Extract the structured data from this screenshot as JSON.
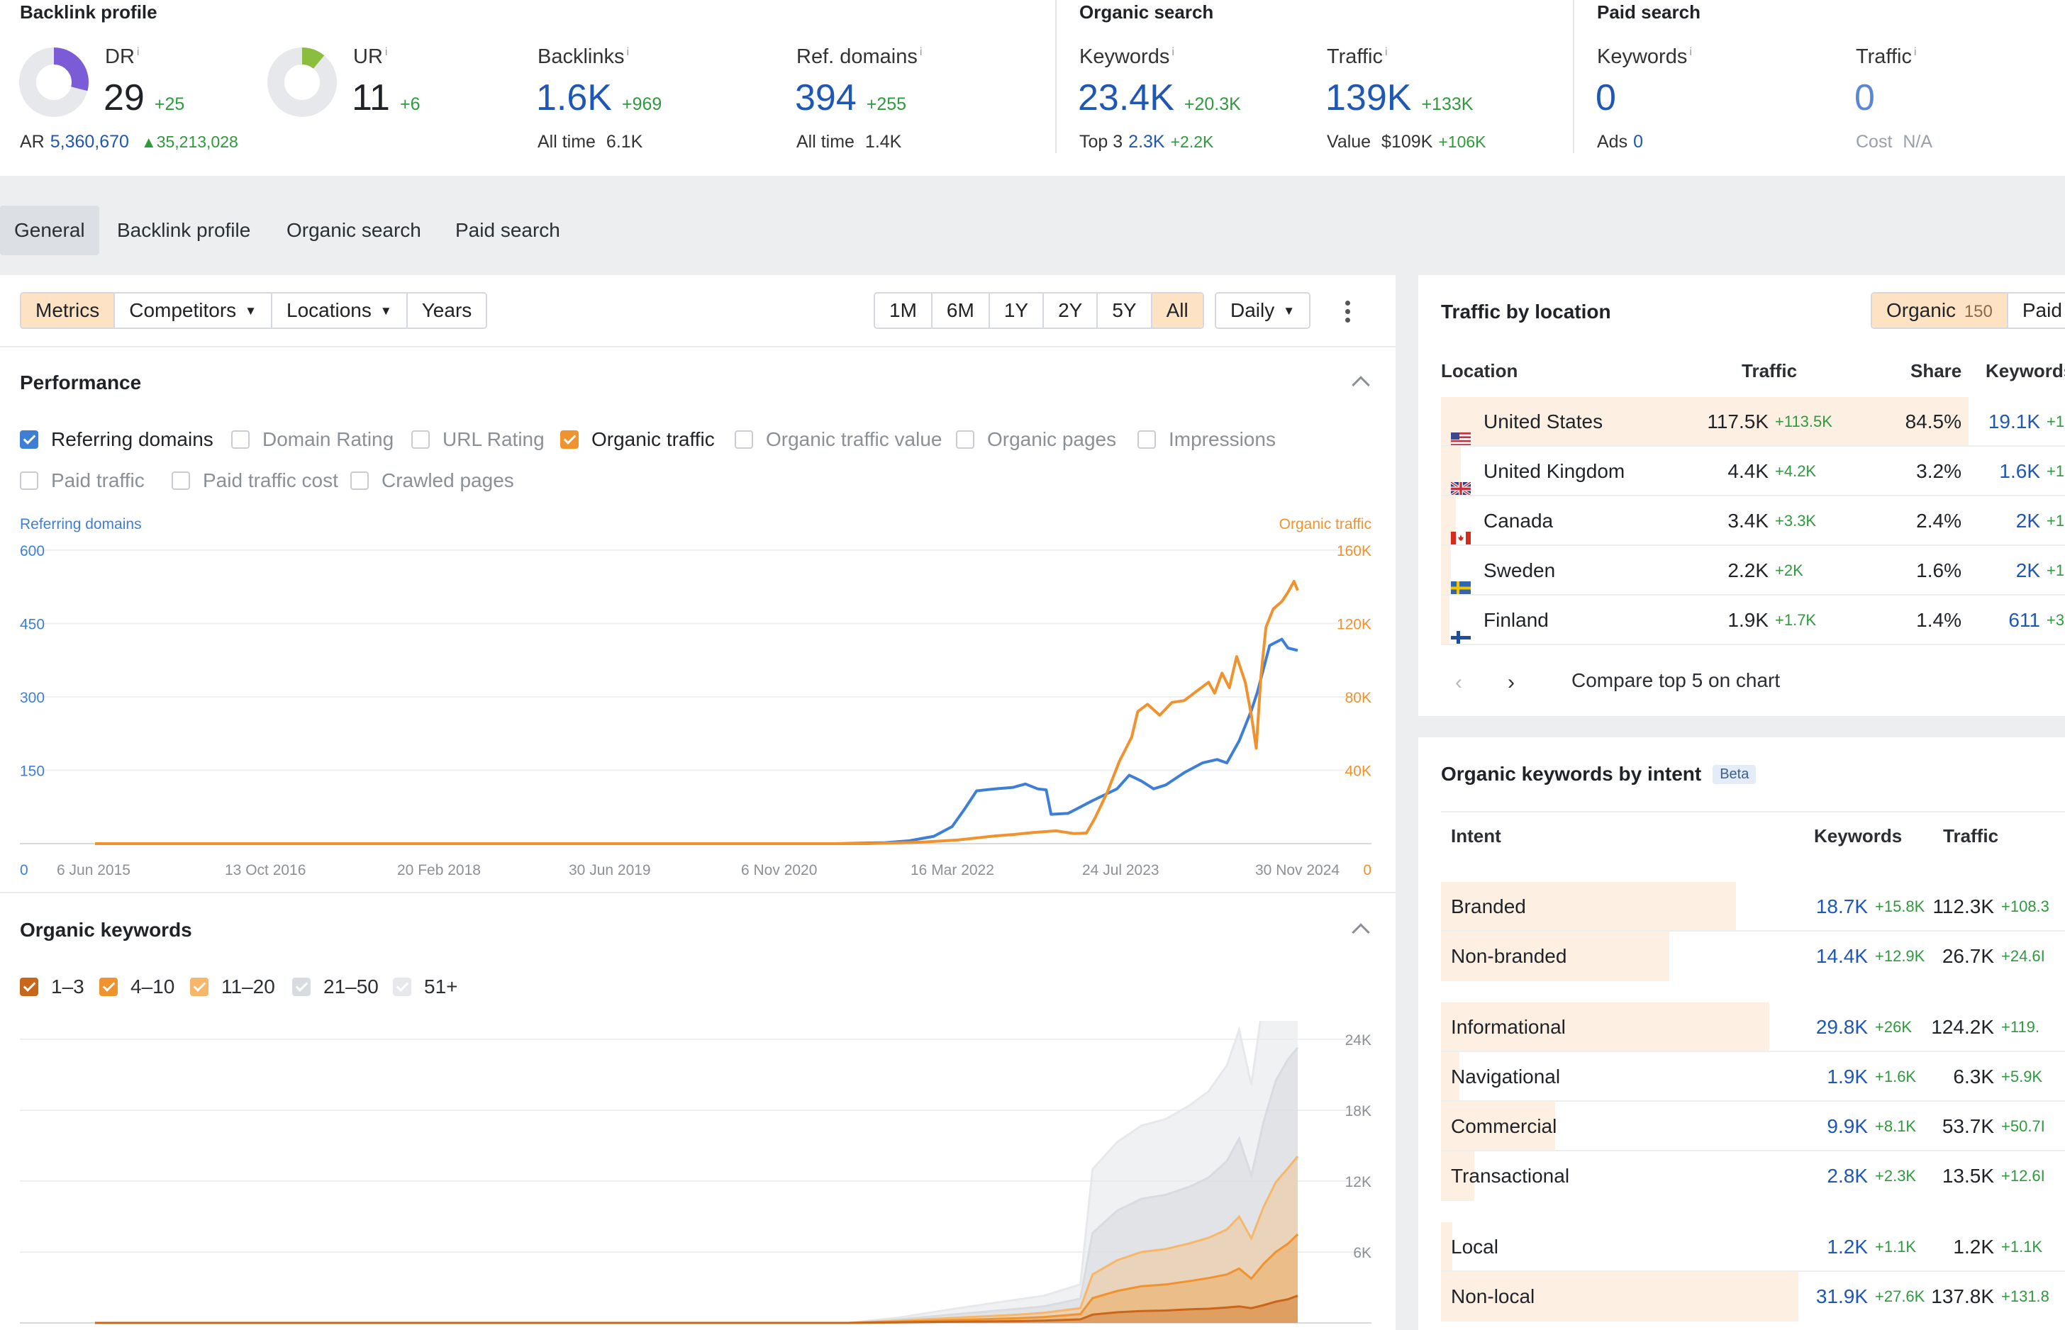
{
  "top": {
    "backlink_profile": {
      "title": "Backlink profile",
      "dr": {
        "label": "DR",
        "info": "i",
        "value": "29",
        "delta": "+25",
        "pct": 0.29,
        "color": "#7b5cd6"
      },
      "ur": {
        "label": "UR",
        "info": "i",
        "value": "11",
        "delta": "+6",
        "pct": 0.11,
        "color": "#8bbd3f"
      },
      "ar": {
        "label": "AR",
        "value": "5,360,670",
        "delta": "35,213,028"
      },
      "backlinks": {
        "label": "Backlinks",
        "info": "i",
        "value": "1.6K",
        "delta": "+969",
        "sub_label": "All time",
        "sub_value": "6.1K"
      },
      "ref_domains": {
        "label": "Ref. domains",
        "info": "i",
        "value": "394",
        "delta": "+255",
        "sub_label": "All time",
        "sub_value": "1.4K"
      }
    },
    "organic_search": {
      "title": "Organic search",
      "keywords": {
        "label": "Keywords",
        "info": "i",
        "value": "23.4K",
        "delta": "+20.3K",
        "sub_label": "Top 3",
        "sub_value": "2.3K",
        "sub_delta": "+2.2K"
      },
      "traffic": {
        "label": "Traffic",
        "info": "i",
        "value": "139K",
        "delta": "+133K",
        "sub_label": "Value",
        "sub_value": "$109K",
        "sub_delta": "+106K"
      }
    },
    "paid_search": {
      "title": "Paid search",
      "keywords": {
        "label": "Keywords",
        "info": "i",
        "value": "0",
        "sub_label": "Ads",
        "sub_value": "0"
      },
      "traffic": {
        "label": "Traffic",
        "info": "i",
        "value": "0",
        "sub_label": "Cost",
        "sub_value": "N/A"
      }
    }
  },
  "tabs": [
    "General",
    "Backlink profile",
    "Organic search",
    "Paid search"
  ],
  "toolbar": {
    "left": [
      "Metrics",
      "Competitors",
      "Locations",
      "Years"
    ],
    "ranges": [
      "1M",
      "6M",
      "1Y",
      "2Y",
      "5Y",
      "All"
    ],
    "interval": "Daily"
  },
  "performance": {
    "title": "Performance",
    "checkboxes": [
      {
        "label": "Referring domains",
        "checked": true,
        "color": "#3e7fd6"
      },
      {
        "label": "Domain Rating",
        "checked": false
      },
      {
        "label": "URL Rating",
        "checked": false
      },
      {
        "label": "Organic traffic",
        "checked": true,
        "color": "#f0922e"
      },
      {
        "label": "Organic traffic value",
        "checked": false
      },
      {
        "label": "Organic pages",
        "checked": false
      },
      {
        "label": "Impressions",
        "checked": false
      },
      {
        "label": "Paid traffic",
        "checked": false
      },
      {
        "label": "Paid traffic cost",
        "checked": false
      },
      {
        "label": "Crawled pages",
        "checked": false
      }
    ]
  },
  "organic_keywords": {
    "title": "Organic keywords",
    "legend": [
      {
        "label": "1–3",
        "color": "#c8661a"
      },
      {
        "label": "4–10",
        "color": "#f0922e"
      },
      {
        "label": "11–20",
        "color": "#f6b76a"
      },
      {
        "label": "21–50",
        "color": "#d8dbe0"
      },
      {
        "label": "51+",
        "color": "#e6e8eb"
      }
    ]
  },
  "chart_data": [
    {
      "type": "line",
      "left_axis_label": "Referring domains",
      "right_axis_label": "Organic traffic",
      "x_tick_labels": [
        "6 Jun 2015",
        "13 Oct 2016",
        "20 Feb 2018",
        "30 Jun 2019",
        "6 Nov 2020",
        "16 Mar 2022",
        "24 Jul 2023",
        "30 Nov 2024"
      ],
      "y_left_ticks": [
        "0",
        "150",
        "300",
        "450",
        "600"
      ],
      "y_right_ticks": [
        "0",
        "40K",
        "80K",
        "120K",
        "160K"
      ],
      "ylim_left": [
        0,
        600
      ],
      "ylim_right": [
        0,
        160000
      ],
      "grid": true,
      "series": [
        {
          "name": "Referring domains",
          "axis": "left",
          "color": "#3e7fd6",
          "points": [
            [
              2015.43,
              0
            ],
            [
              2021.5,
              0
            ],
            [
              2021.9,
              2
            ],
            [
              2022.1,
              6
            ],
            [
              2022.3,
              15
            ],
            [
              2022.45,
              35
            ],
            [
              2022.55,
              70
            ],
            [
              2022.65,
              108
            ],
            [
              2022.8,
              112
            ],
            [
              2022.95,
              115
            ],
            [
              2023.05,
              122
            ],
            [
              2023.15,
              112
            ],
            [
              2023.22,
              110
            ],
            [
              2023.26,
              60
            ],
            [
              2023.4,
              62
            ],
            [
              2023.5,
              75
            ],
            [
              2023.6,
              88
            ],
            [
              2023.7,
              100
            ],
            [
              2023.8,
              112
            ],
            [
              2023.9,
              140
            ],
            [
              2024.0,
              128
            ],
            [
              2024.1,
              112
            ],
            [
              2024.2,
              120
            ],
            [
              2024.35,
              145
            ],
            [
              2024.5,
              165
            ],
            [
              2024.62,
              172
            ],
            [
              2024.7,
              165
            ],
            [
              2024.8,
              210
            ],
            [
              2024.9,
              272
            ],
            [
              2024.95,
              310
            ],
            [
              2025.05,
              405
            ],
            [
              2025.15,
              418
            ],
            [
              2025.2,
              400
            ],
            [
              2025.28,
              395
            ]
          ]
        },
        {
          "name": "Organic traffic",
          "axis": "right",
          "color": "#f0922e",
          "points": [
            [
              2015.43,
              0
            ],
            [
              2021.75,
              0
            ],
            [
              2022.2,
              800
            ],
            [
              2022.5,
              2000
            ],
            [
              2022.8,
              4200
            ],
            [
              2022.95,
              5000
            ],
            [
              2023.1,
              6000
            ],
            [
              2023.3,
              7000
            ],
            [
              2023.45,
              5500
            ],
            [
              2023.55,
              5800
            ],
            [
              2023.62,
              14000
            ],
            [
              2023.72,
              28000
            ],
            [
              2023.82,
              45000
            ],
            [
              2023.92,
              58000
            ],
            [
              2023.97,
              72000
            ],
            [
              2024.05,
              76000
            ],
            [
              2024.15,
              70000
            ],
            [
              2024.25,
              77000
            ],
            [
              2024.35,
              78000
            ],
            [
              2024.45,
              83000
            ],
            [
              2024.55,
              88000
            ],
            [
              2024.6,
              82000
            ],
            [
              2024.66,
              93000
            ],
            [
              2024.72,
              85000
            ],
            [
              2024.78,
              102000
            ],
            [
              2024.85,
              88000
            ],
            [
              2024.9,
              70000
            ],
            [
              2024.94,
              52000
            ],
            [
              2024.98,
              92000
            ],
            [
              2025.02,
              118000
            ],
            [
              2025.08,
              128000
            ],
            [
              2025.15,
              132000
            ],
            [
              2025.2,
              137000
            ],
            [
              2025.25,
              143000
            ],
            [
              2025.28,
              138000
            ]
          ]
        }
      ]
    },
    {
      "type": "area",
      "stacked": true,
      "y_ticks": [
        "6K",
        "12K",
        "18K",
        "24K"
      ],
      "ylim": [
        0,
        24000
      ],
      "x_range": [
        2015.43,
        2025.28
      ],
      "grid": true,
      "x": [
        2015.43,
        2021.6,
        2022.0,
        2022.5,
        2023.0,
        2023.2,
        2023.5,
        2023.6,
        2023.8,
        2024.0,
        2024.2,
        2024.4,
        2024.55,
        2024.7,
        2024.8,
        2024.9,
        2025.0,
        2025.1,
        2025.2,
        2025.28
      ],
      "series": [
        {
          "name": "1–3",
          "color": "#c8661a",
          "values": [
            0,
            0,
            50,
            100,
            150,
            200,
            300,
            700,
            900,
            1000,
            1050,
            1150,
            1200,
            1300,
            1400,
            1250,
            1500,
            1800,
            2000,
            2300
          ]
        },
        {
          "name": "4–10",
          "color": "#f0922e",
          "values": [
            0,
            0,
            60,
            150,
            250,
            300,
            450,
            1400,
            1800,
            2100,
            2200,
            2400,
            2600,
            2800,
            3200,
            2500,
            3500,
            4200,
            4700,
            5200
          ]
        },
        {
          "name": "11–20",
          "color": "#f6b76a",
          "values": [
            0,
            0,
            70,
            200,
            300,
            350,
            500,
            2000,
            2600,
            2900,
            3000,
            3200,
            3400,
            3800,
            4400,
            3400,
            4800,
            5900,
            6400,
            6600
          ]
        },
        {
          "name": "21–50",
          "color": "#d8dbe0",
          "values": [
            0,
            0,
            100,
            300,
            500,
            550,
            800,
            3500,
            4200,
            4500,
            4600,
            4800,
            5100,
            5800,
            6600,
            5300,
            7200,
            8600,
            9200,
            9200
          ]
        },
        {
          "name": "51+",
          "color": "#e6e8eb",
          "values": [
            0,
            0,
            150,
            500,
            800,
            900,
            1200,
            5400,
            5800,
            6200,
            6400,
            6900,
            7300,
            8100,
            9200,
            7700,
            10400,
            12600,
            14000,
            15200
          ]
        }
      ]
    }
  ],
  "traffic_by_location": {
    "title": "Traffic by location",
    "toggle": [
      {
        "label": "Organic",
        "count": "150"
      },
      {
        "label": "Paid"
      }
    ],
    "headers": {
      "location": "Location",
      "traffic": "Traffic",
      "share": "Share",
      "keywords": "Keywords"
    },
    "rows": [
      {
        "flag": "us",
        "name": "United States",
        "traffic": "117.5K",
        "delta": "+113.5K",
        "share": "84.5%",
        "share_value": 0.845,
        "keywords": "19.1K",
        "kw_delta": "+1"
      },
      {
        "flag": "uk",
        "name": "United Kingdom",
        "traffic": "4.4K",
        "delta": "+4.2K",
        "share": "3.2%",
        "share_value": 0.032,
        "keywords": "1.6K",
        "kw_delta": "+1"
      },
      {
        "flag": "ca",
        "name": "Canada",
        "traffic": "3.4K",
        "delta": "+3.3K",
        "share": "2.4%",
        "share_value": 0.024,
        "keywords": "2K",
        "kw_delta": "+1"
      },
      {
        "flag": "se",
        "name": "Sweden",
        "traffic": "2.2K",
        "delta": "+2K",
        "share": "1.6%",
        "share_value": 0.016,
        "keywords": "2K",
        "kw_delta": "+1"
      },
      {
        "flag": "fi",
        "name": "Finland",
        "traffic": "1.9K",
        "delta": "+1.7K",
        "share": "1.4%",
        "share_value": 0.014,
        "keywords": "611",
        "kw_delta": "+3"
      }
    ],
    "compare_label": "Compare top 5 on chart"
  },
  "organic_by_intent": {
    "title": "Organic keywords by intent",
    "badge": "Beta",
    "headers": {
      "intent": "Intent",
      "keywords": "Keywords",
      "traffic": "Traffic"
    },
    "groups": [
      [
        {
          "name": "Branded",
          "keywords": "18.7K",
          "kw_delta": "+15.8K",
          "traffic": "112.3K",
          "tr_delta": "+108.3",
          "share_value": 0.8
        },
        {
          "name": "Non-branded",
          "keywords": "14.4K",
          "kw_delta": "+12.9K",
          "traffic": "26.7K",
          "tr_delta": "+24.6I",
          "share_value": 0.62
        }
      ],
      [
        {
          "name": "Informational",
          "keywords": "29.8K",
          "kw_delta": "+26K",
          "traffic": "124.2K",
          "tr_delta": "+119.",
          "share_value": 0.89
        },
        {
          "name": "Navigational",
          "keywords": "1.9K",
          "kw_delta": "+1.6K",
          "traffic": "6.3K",
          "tr_delta": "+5.9K",
          "share_value": 0.05
        },
        {
          "name": "Commercial",
          "keywords": "9.9K",
          "kw_delta": "+8.1K",
          "traffic": "53.7K",
          "tr_delta": "+50.7I",
          "share_value": 0.31
        },
        {
          "name": "Transactional",
          "keywords": "2.8K",
          "kw_delta": "+2.3K",
          "traffic": "13.5K",
          "tr_delta": "+12.6I",
          "share_value": 0.09
        }
      ],
      [
        {
          "name": "Local",
          "keywords": "1.2K",
          "kw_delta": "+1.1K",
          "traffic": "1.2K",
          "tr_delta": "+1.1K",
          "share_value": 0.03
        },
        {
          "name": "Non-local",
          "keywords": "31.9K",
          "kw_delta": "+27.6K",
          "traffic": "137.8K",
          "tr_delta": "+131.8",
          "share_value": 0.97
        }
      ]
    ]
  }
}
